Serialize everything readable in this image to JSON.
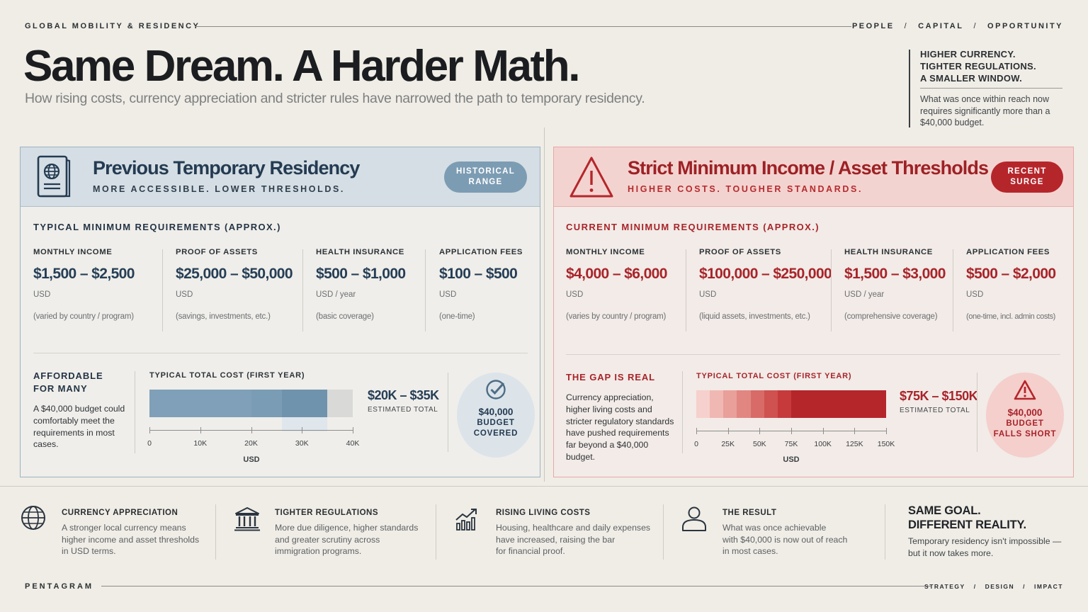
{
  "header": {
    "kicker": "GLOBAL MOBILITY & RESIDENCY",
    "nav": [
      "PEOPLE",
      "CAPITAL",
      "OPPORTUNITY"
    ],
    "nav_sep": "/",
    "title": "Same Dream. A Harder Math.",
    "subtitle": "How rising costs, currency appreciation and stricter rules have narrowed the path to temporary residency.",
    "side_lines": [
      "HIGHER CURRENCY.",
      "TIGHTER REGULATIONS.",
      "A SMALLER WINDOW."
    ],
    "side_body": "What was once within reach now requires significantly more than a $40,000 budget."
  },
  "left": {
    "title": "Previous Temporary Residency",
    "subtitle": "MORE ACCESSIBLE. LOWER THRESHOLDS.",
    "pill": [
      "HISTORICAL",
      "RANGE"
    ],
    "req_title": "TYPICAL MINIMUM REQUIREMENTS (APPROX.)",
    "cols": [
      {
        "label": "MONTHLY INCOME",
        "value": "$1,500 – $2,500",
        "unit": "USD",
        "note": "(varied by country / program)"
      },
      {
        "label": "PROOF OF ASSETS",
        "value": "$25,000 – $50,000",
        "unit": "USD",
        "note": "(savings, investments, etc.)"
      },
      {
        "label": "HEALTH INSURANCE",
        "value": "$500 – $1,000",
        "unit": "USD / year",
        "note": "(basic coverage)"
      },
      {
        "label": "APPLICATION FEES",
        "value": "$100 – $500",
        "unit": "USD",
        "note": "(one-time)"
      }
    ],
    "block_title": [
      "AFFORDABLE",
      "FOR MANY"
    ],
    "block_body": "A $40,000 budget could comfortably meet the requirements in most cases.",
    "cost_label": "TYPICAL TOTAL COST (FIRST YEAR)",
    "range": "$20K – $35K",
    "range_sub": "ESTIMATED TOTAL",
    "axis_title": "USD",
    "circle": [
      "$40,000",
      "BUDGET",
      "COVERED"
    ],
    "colors": {
      "bar": "#7fa0b8",
      "accent": "#243b52"
    }
  },
  "right": {
    "title": "Strict Minimum Income / Asset Thresholds",
    "subtitle": "HIGHER COSTS. TOUGHER STANDARDS.",
    "pill": [
      "RECENT",
      "SURGE"
    ],
    "req_title": "CURRENT MINIMUM REQUIREMENTS (APPROX.)",
    "cols": [
      {
        "label": "MONTHLY INCOME",
        "value": "$4,000 – $6,000",
        "unit": "USD",
        "note": "(varies by country / program)"
      },
      {
        "label": "PROOF OF ASSETS",
        "value": "$100,000 – $250,000",
        "unit": "USD",
        "note": "(liquid assets, investments, etc.)"
      },
      {
        "label": "HEALTH INSURANCE",
        "value": "$1,500 – $3,000",
        "unit": "USD / year",
        "note": "(comprehensive coverage)"
      },
      {
        "label": "APPLICATION FEES",
        "value": "$500 – $2,000",
        "unit": "USD",
        "note": "(one-time, incl. admin costs)"
      }
    ],
    "block_title": [
      "THE GAP IS REAL"
    ],
    "block_body": "Currency appreciation, higher living costs and stricter regulatory standards have pushed requirements far beyond a $40,000 budget.",
    "cost_label": "TYPICAL TOTAL COST (FIRST YEAR)",
    "range": "$75K – $150K",
    "range_sub": "ESTIMATED TOTAL",
    "axis_title": "USD",
    "circle": [
      "$40,000",
      "BUDGET",
      "FALLS SHORT"
    ],
    "colors": {
      "accent": "#a8242a"
    }
  },
  "chart_data": [
    {
      "type": "bar",
      "title": "TYPICAL TOTAL COST (FIRST YEAR)",
      "xlabel": "USD",
      "x_ticks": [
        "0",
        "10K",
        "20K",
        "30K",
        "40K"
      ],
      "xlim": [
        0,
        40000
      ],
      "range_low": 20000,
      "range_high": 35000,
      "budget": 40000
    },
    {
      "type": "bar",
      "title": "TYPICAL TOTAL COST (FIRST YEAR)",
      "xlabel": "USD",
      "x_ticks": [
        "0",
        "25K",
        "50K",
        "75K",
        "100K",
        "125K",
        "150K"
      ],
      "xlim": [
        0,
        150000
      ],
      "range_low": 75000,
      "range_high": 150000,
      "budget": 40000
    }
  ],
  "features": [
    {
      "icon": "globe-icon",
      "title": "CURRENCY APPRECIATION",
      "body": [
        "A stronger local currency means",
        "higher income and asset thresholds",
        "in USD terms."
      ]
    },
    {
      "icon": "bank-icon",
      "title": "TIGHTER REGULATIONS",
      "body": [
        "More due diligence, higher standards",
        "and greater scrutiny across",
        "immigration programs."
      ]
    },
    {
      "icon": "rising-chart-icon",
      "title": "RISING LIVING COSTS",
      "body": [
        "Housing, healthcare and daily expenses",
        "have increased, raising the bar",
        "for financial proof."
      ]
    },
    {
      "icon": "person-icon",
      "title": "THE RESULT",
      "body": [
        "What was once achievable",
        "with $40,000 is now out of reach",
        "in most cases."
      ]
    }
  ],
  "final": {
    "title": [
      "SAME GOAL.",
      "DIFFERENT REALITY."
    ],
    "body": [
      "Temporary residency isn't impossible —",
      "but it now takes more."
    ]
  },
  "footer": {
    "brand": "PENTAGRAM",
    "nav": [
      "STRATEGY",
      "DESIGN",
      "IMPACT"
    ],
    "nav_sep": "/"
  }
}
